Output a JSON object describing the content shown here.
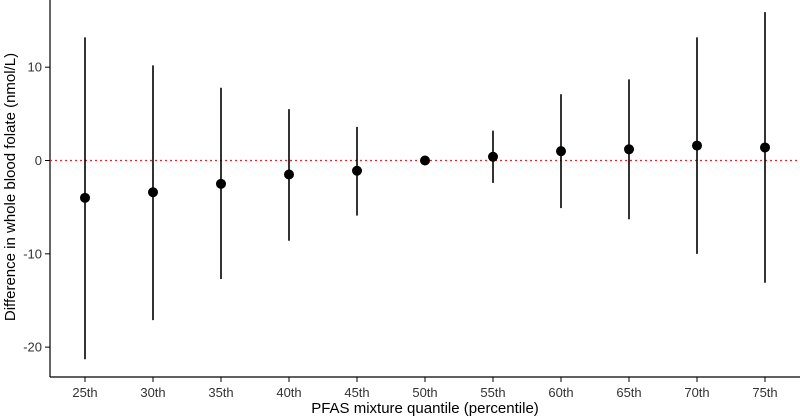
{
  "chart_data": {
    "type": "scatter",
    "xlabel": "PFAS mixture quantile (percentile)",
    "ylabel": "Difference in whole blood folate (nmol/L)",
    "categories": [
      "25th",
      "30th",
      "35th",
      "40th",
      "45th",
      "50th",
      "55th",
      "60th",
      "65th",
      "70th",
      "75th"
    ],
    "estimate": [
      -4.0,
      -3.4,
      -2.5,
      -1.5,
      -1.1,
      0.0,
      0.4,
      1.0,
      1.2,
      1.6,
      1.4
    ],
    "ci_lower": [
      -21.3,
      -17.1,
      -12.7,
      -8.6,
      -5.9,
      0.0,
      -2.4,
      -5.1,
      -6.3,
      -10.0,
      -13.1
    ],
    "ci_upper": [
      13.2,
      10.2,
      7.8,
      5.5,
      3.6,
      0.0,
      3.2,
      7.1,
      8.7,
      13.2,
      15.9
    ],
    "ylim": [
      -23.2,
      17.2
    ],
    "yticks": [
      -20,
      -10,
      0,
      10
    ],
    "yticklabels": [
      "-20",
      "-10",
      "0",
      "10"
    ],
    "reference_line": {
      "y": 0,
      "style": "dotted",
      "color": "#e8262a"
    },
    "grid": false,
    "colors": {
      "points": "#000000",
      "axis": "#000000"
    }
  }
}
